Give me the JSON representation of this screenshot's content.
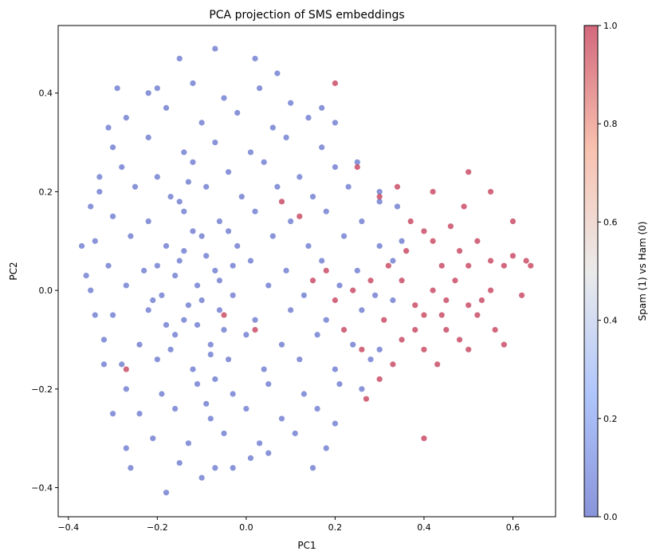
{
  "chart_data": {
    "type": "scatter",
    "title": "PCA projection of SMS embeddings",
    "xlabel": "PC1",
    "ylabel": "PC2",
    "xlim": [
      -0.423,
      0.696
    ],
    "ylim": [
      -0.459,
      0.537
    ],
    "xticks": [
      -0.4,
      -0.2,
      0.0,
      0.2,
      0.4,
      0.6
    ],
    "xtick_labels": [
      "−0.4",
      "−0.2",
      "0.0",
      "0.2",
      "0.4",
      "0.6"
    ],
    "yticks": [
      -0.4,
      -0.2,
      0.0,
      0.2,
      0.4
    ],
    "ytick_labels": [
      "−0.4",
      "−0.2",
      "0.0",
      "0.2",
      "0.4"
    ],
    "grid": false,
    "colormap": "coolwarm",
    "alpha": 0.6,
    "colors": {
      "ham": "#3b4cc0",
      "spam": "#b40426"
    },
    "colorbar": {
      "label": "Spam (1) vs Ham (0)",
      "range": [
        0,
        1
      ],
      "ticks": [
        0.0,
        0.2,
        0.4,
        0.6,
        0.8,
        1.0
      ],
      "tick_labels": [
        "0.0",
        "0.2",
        "0.4",
        "0.6",
        "0.8",
        "1.0"
      ]
    },
    "series": [
      {
        "label_value": 0,
        "points": [
          [
            -0.37,
            0.09
          ],
          [
            -0.35,
            0.17
          ],
          [
            -0.33,
            0.23
          ],
          [
            -0.31,
            0.33
          ],
          [
            -0.29,
            0.41
          ],
          [
            -0.2,
            0.41
          ],
          [
            -0.15,
            0.47
          ],
          [
            -0.07,
            0.49
          ],
          [
            0.02,
            0.47
          ],
          [
            0.07,
            0.44
          ],
          [
            0.17,
            0.37
          ],
          [
            0.2,
            0.34
          ],
          [
            0.25,
            0.26
          ],
          [
            0.3,
            0.2
          ],
          [
            0.34,
            0.17
          ],
          [
            0.35,
            0.1
          ],
          [
            0.33,
            -0.02
          ],
          [
            0.3,
            -0.12
          ],
          [
            0.26,
            -0.2
          ],
          [
            0.2,
            -0.27
          ],
          [
            0.18,
            -0.32
          ],
          [
            0.15,
            -0.36
          ],
          [
            0.05,
            -0.33
          ],
          [
            -0.03,
            -0.36
          ],
          [
            -0.1,
            -0.38
          ],
          [
            -0.18,
            -0.41
          ],
          [
            -0.26,
            -0.36
          ],
          [
            -0.27,
            -0.32
          ],
          [
            -0.3,
            -0.25
          ],
          [
            -0.32,
            -0.15
          ],
          [
            -0.34,
            -0.05
          ],
          [
            -0.36,
            0.03
          ],
          [
            -0.22,
            0.4
          ],
          [
            -0.12,
            0.42
          ],
          [
            -0.05,
            0.39
          ],
          [
            0.03,
            0.41
          ],
          [
            0.1,
            0.38
          ],
          [
            -0.27,
            0.35
          ],
          [
            -0.18,
            0.37
          ],
          [
            -0.1,
            0.34
          ],
          [
            -0.02,
            0.36
          ],
          [
            0.06,
            0.33
          ],
          [
            0.14,
            0.35
          ],
          [
            -0.3,
            0.29
          ],
          [
            -0.22,
            0.31
          ],
          [
            -0.14,
            0.28
          ],
          [
            -0.07,
            0.3
          ],
          [
            0.01,
            0.28
          ],
          [
            0.09,
            0.31
          ],
          [
            0.17,
            0.29
          ],
          [
            -0.28,
            0.25
          ],
          [
            -0.2,
            0.23
          ],
          [
            -0.12,
            0.26
          ],
          [
            -0.04,
            0.24
          ],
          [
            0.04,
            0.26
          ],
          [
            0.12,
            0.23
          ],
          [
            0.2,
            0.25
          ],
          [
            -0.33,
            0.2
          ],
          [
            -0.25,
            0.21
          ],
          [
            -0.17,
            0.19
          ],
          [
            -0.09,
            0.21
          ],
          [
            -0.01,
            0.19
          ],
          [
            0.07,
            0.21
          ],
          [
            0.15,
            0.19
          ],
          [
            0.23,
            0.21
          ],
          [
            0.3,
            0.18
          ],
          [
            -0.3,
            0.15
          ],
          [
            -0.22,
            0.14
          ],
          [
            -0.14,
            0.16
          ],
          [
            -0.06,
            0.14
          ],
          [
            0.02,
            0.16
          ],
          [
            0.1,
            0.14
          ],
          [
            0.18,
            0.16
          ],
          [
            0.26,
            0.14
          ],
          [
            -0.34,
            0.1
          ],
          [
            -0.26,
            0.11
          ],
          [
            -0.18,
            0.09
          ],
          [
            -0.1,
            0.11
          ],
          [
            -0.02,
            0.09
          ],
          [
            0.06,
            0.11
          ],
          [
            0.14,
            0.09
          ],
          [
            0.22,
            0.11
          ],
          [
            0.3,
            0.09
          ],
          [
            -0.31,
            0.05
          ],
          [
            -0.23,
            0.04
          ],
          [
            -0.15,
            0.06
          ],
          [
            -0.07,
            0.04
          ],
          [
            0.01,
            0.06
          ],
          [
            0.09,
            0.04
          ],
          [
            0.17,
            0.06
          ],
          [
            0.25,
            0.04
          ],
          [
            0.33,
            0.06
          ],
          [
            -0.35,
            0.0
          ],
          [
            -0.27,
            0.01
          ],
          [
            -0.19,
            -0.01
          ],
          [
            -0.11,
            0.01
          ],
          [
            -0.03,
            -0.01
          ],
          [
            0.05,
            0.01
          ],
          [
            0.13,
            -0.01
          ],
          [
            0.21,
            0.01
          ],
          [
            0.29,
            -0.01
          ],
          [
            -0.3,
            -0.05
          ],
          [
            -0.22,
            -0.04
          ],
          [
            -0.14,
            -0.06
          ],
          [
            -0.06,
            -0.04
          ],
          [
            0.02,
            -0.06
          ],
          [
            0.1,
            -0.04
          ],
          [
            0.18,
            -0.06
          ],
          [
            0.26,
            -0.04
          ],
          [
            -0.32,
            -0.1
          ],
          [
            -0.24,
            -0.11
          ],
          [
            -0.16,
            -0.09
          ],
          [
            -0.08,
            -0.11
          ],
          [
            0.0,
            -0.09
          ],
          [
            0.08,
            -0.11
          ],
          [
            0.16,
            -0.09
          ],
          [
            0.24,
            -0.11
          ],
          [
            -0.28,
            -0.15
          ],
          [
            -0.2,
            -0.14
          ],
          [
            -0.12,
            -0.16
          ],
          [
            -0.04,
            -0.14
          ],
          [
            0.04,
            -0.16
          ],
          [
            0.12,
            -0.14
          ],
          [
            0.2,
            -0.16
          ],
          [
            0.28,
            -0.14
          ],
          [
            -0.27,
            -0.2
          ],
          [
            -0.19,
            -0.21
          ],
          [
            -0.11,
            -0.19
          ],
          [
            -0.03,
            -0.21
          ],
          [
            0.05,
            -0.19
          ],
          [
            0.13,
            -0.21
          ],
          [
            0.21,
            -0.19
          ],
          [
            -0.24,
            -0.25
          ],
          [
            -0.16,
            -0.24
          ],
          [
            -0.08,
            -0.26
          ],
          [
            0.0,
            -0.24
          ],
          [
            0.08,
            -0.26
          ],
          [
            0.16,
            -0.24
          ],
          [
            -0.21,
            -0.3
          ],
          [
            -0.13,
            -0.31
          ],
          [
            -0.05,
            -0.29
          ],
          [
            0.03,
            -0.31
          ],
          [
            0.11,
            -0.29
          ],
          [
            -0.15,
            -0.35
          ],
          [
            -0.07,
            -0.36
          ],
          [
            0.01,
            -0.34
          ],
          [
            -0.16,
            0.03
          ],
          [
            -0.13,
            -0.03
          ],
          [
            -0.09,
            0.07
          ],
          [
            -0.05,
            -0.08
          ],
          [
            -0.12,
            0.12
          ],
          [
            -0.08,
            -0.13
          ],
          [
            -0.18,
            -0.07
          ],
          [
            -0.14,
            0.08
          ],
          [
            -0.1,
            -0.02
          ],
          [
            -0.06,
            0.02
          ],
          [
            -0.2,
            0.05
          ],
          [
            -0.17,
            -0.12
          ],
          [
            -0.11,
            -0.07
          ],
          [
            -0.03,
            0.05
          ],
          [
            -0.15,
            0.18
          ],
          [
            -0.07,
            -0.18
          ],
          [
            -0.21,
            -0.02
          ],
          [
            -0.13,
            0.22
          ],
          [
            -0.09,
            -0.23
          ],
          [
            -0.04,
            0.12
          ]
        ]
      },
      {
        "label_value": 1,
        "points": [
          [
            0.2,
            0.42
          ],
          [
            0.4,
            -0.3
          ],
          [
            0.25,
            0.25
          ],
          [
            0.3,
            0.19
          ],
          [
            0.42,
            0.2
          ],
          [
            0.5,
            0.24
          ],
          [
            0.55,
            0.2
          ],
          [
            0.6,
            0.14
          ],
          [
            0.64,
            0.05
          ],
          [
            0.63,
            0.06
          ],
          [
            0.62,
            -0.01
          ],
          [
            0.6,
            0.07
          ],
          [
            0.58,
            0.05
          ],
          [
            0.55,
            0.0
          ],
          [
            0.5,
            -0.03
          ],
          [
            0.45,
            -0.02
          ],
          [
            0.42,
            0.0
          ],
          [
            0.4,
            -0.05
          ],
          [
            0.38,
            -0.08
          ],
          [
            0.35,
            -0.1
          ],
          [
            0.33,
            -0.15
          ],
          [
            0.4,
            -0.12
          ],
          [
            0.45,
            -0.08
          ],
          [
            0.48,
            -0.1
          ],
          [
            0.52,
            -0.05
          ],
          [
            0.56,
            -0.08
          ],
          [
            0.58,
            -0.11
          ],
          [
            0.44,
            0.05
          ],
          [
            0.48,
            0.08
          ],
          [
            0.52,
            0.1
          ],
          [
            0.46,
            0.13
          ],
          [
            0.4,
            0.12
          ],
          [
            0.36,
            0.08
          ],
          [
            0.32,
            0.05
          ],
          [
            0.28,
            0.02
          ],
          [
            0.24,
            0.0
          ],
          [
            0.2,
            -0.02
          ],
          [
            0.18,
            0.04
          ],
          [
            0.15,
            0.02
          ],
          [
            0.22,
            -0.08
          ],
          [
            0.26,
            -0.12
          ],
          [
            0.3,
            -0.18
          ],
          [
            0.27,
            -0.22
          ],
          [
            0.43,
            -0.15
          ],
          [
            0.38,
            -0.03
          ],
          [
            0.47,
            0.02
          ],
          [
            0.5,
            0.05
          ],
          [
            0.53,
            -0.02
          ],
          [
            0.35,
            0.02
          ],
          [
            0.31,
            -0.06
          ],
          [
            0.42,
            0.1
          ],
          [
            0.37,
            0.14
          ],
          [
            0.55,
            0.06
          ],
          [
            0.5,
            -0.12
          ],
          [
            0.44,
            -0.05
          ],
          [
            0.49,
            0.17
          ],
          [
            0.34,
            0.21
          ],
          [
            0.12,
            0.15
          ],
          [
            0.08,
            0.18
          ],
          [
            -0.05,
            -0.05
          ],
          [
            -0.27,
            -0.16
          ],
          [
            0.02,
            -0.08
          ]
        ]
      }
    ]
  }
}
